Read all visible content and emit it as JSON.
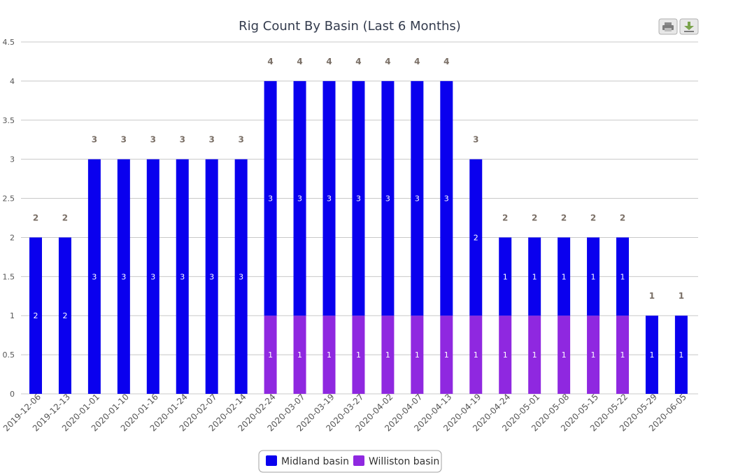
{
  "toolbar": {
    "print_icon": "printer-icon",
    "download_icon": "download-icon"
  },
  "colors": {
    "midland": "#0a00ee",
    "williston": "#8f28e0",
    "grid": "#c8c8c8",
    "title": "#333b4d"
  },
  "chart_data": {
    "type": "bar",
    "stacked": true,
    "title": "Rig Count By Basin (Last 6 Months)",
    "xlabel": "",
    "ylabel": "",
    "ylim": [
      0,
      4.5
    ],
    "yticks": [
      "0",
      "0.5",
      "1",
      "1.5",
      "2",
      "2.5",
      "3",
      "3.5",
      "4",
      "4.5"
    ],
    "grid": true,
    "legend_position": "bottom-center",
    "categories": [
      "2019-12-06",
      "2019-12-13",
      "2020-01-01",
      "2020-01-10",
      "2020-01-16",
      "2020-01-24",
      "2020-02-07",
      "2020-02-14",
      "2020-02-24",
      "2020-03-07",
      "2020-03-19",
      "2020-03-27",
      "2020-04-02",
      "2020-04-07",
      "2020-04-13",
      "2020-04-19",
      "2020-04-24",
      "2020-05-01",
      "2020-05-08",
      "2020-05-15",
      "2020-05-22",
      "2020-05-29",
      "2020-06-05"
    ],
    "series": [
      {
        "name": "Midland basin",
        "values": [
          2,
          2,
          3,
          3,
          3,
          3,
          3,
          3,
          3,
          3,
          3,
          3,
          3,
          3,
          3,
          2,
          1,
          1,
          1,
          1,
          1,
          1,
          1
        ]
      },
      {
        "name": "Williston basin",
        "values": [
          0,
          0,
          0,
          0,
          0,
          0,
          0,
          0,
          1,
          1,
          1,
          1,
          1,
          1,
          1,
          1,
          1,
          1,
          1,
          1,
          1,
          0,
          0
        ]
      }
    ]
  }
}
